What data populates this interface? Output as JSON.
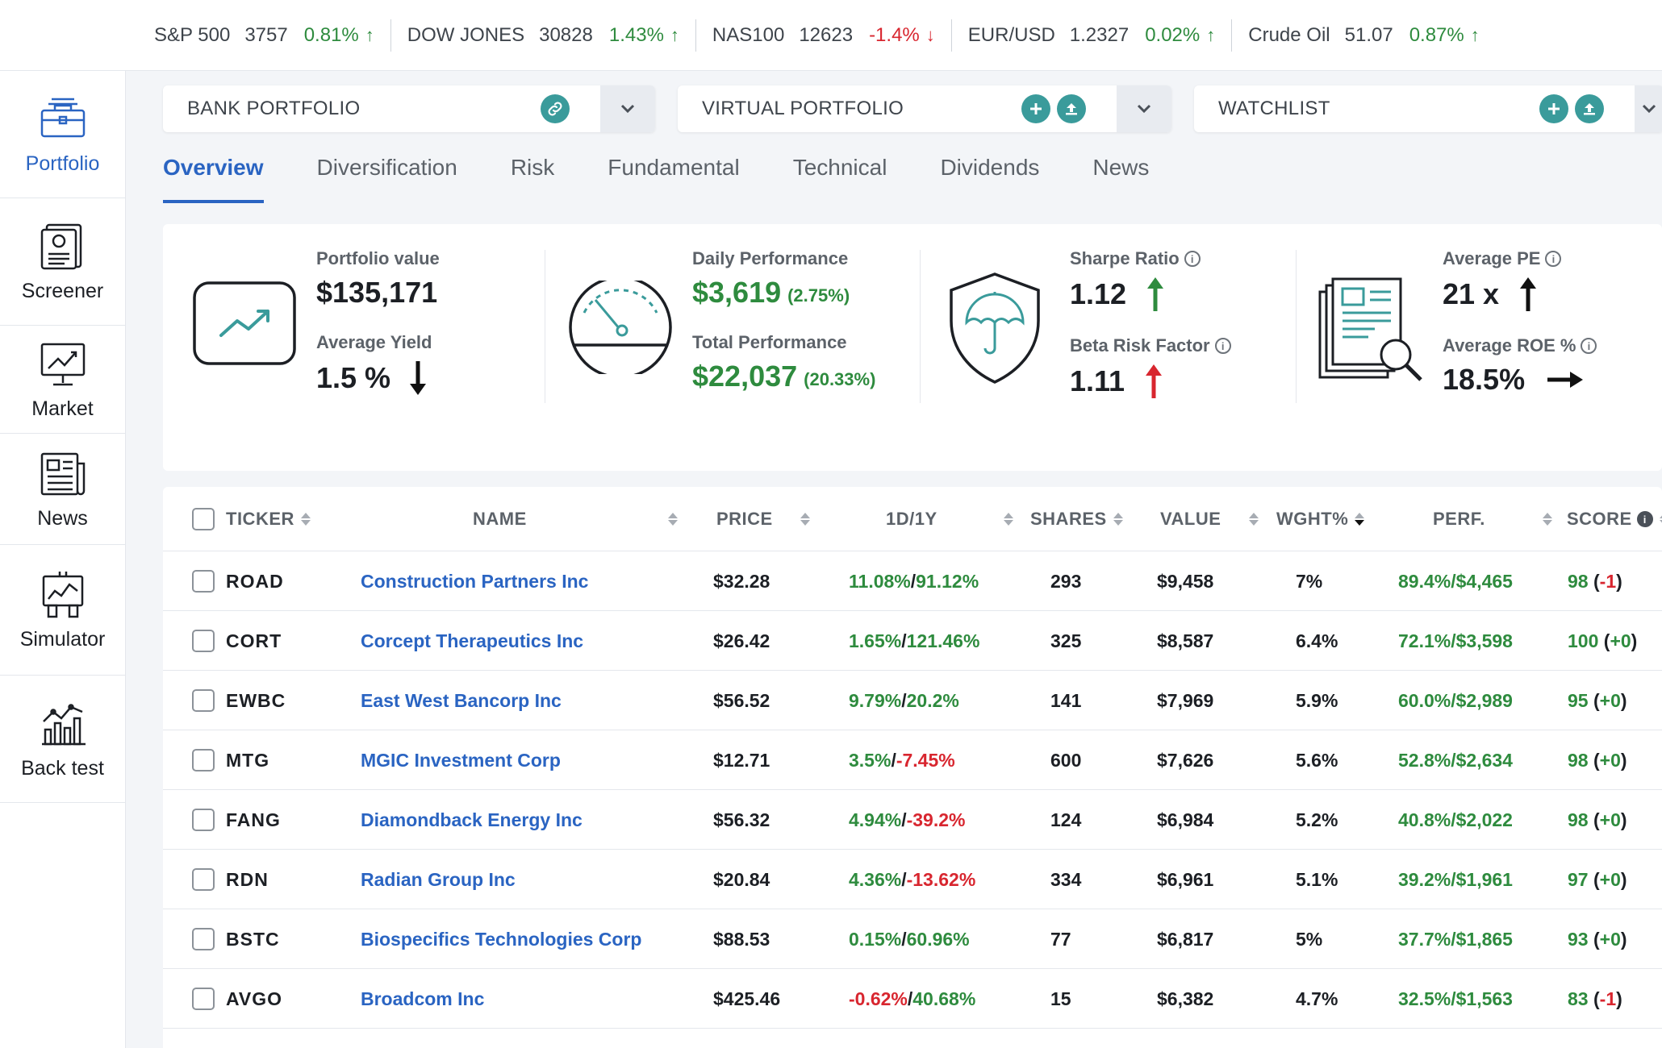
{
  "ticker_bar": [
    {
      "name": "S&P 500",
      "value": "3757",
      "change": "0.81%",
      "dir": "up"
    },
    {
      "name": "DOW JONES",
      "value": "30828",
      "change": "1.43%",
      "dir": "up"
    },
    {
      "name": "NAS100",
      "value": "12623",
      "change": "-1.4%",
      "dir": "down"
    },
    {
      "name": "EUR/USD",
      "value": "1.2327",
      "change": "0.02%",
      "dir": "up"
    },
    {
      "name": "Crude Oil",
      "value": "51.07",
      "change": "0.87%",
      "dir": "up"
    }
  ],
  "sidebar": {
    "items": [
      {
        "label": "Portfolio",
        "icon": "portfolio-icon",
        "active": true
      },
      {
        "label": "Screener",
        "icon": "screener-icon"
      },
      {
        "label": "Market",
        "icon": "market-icon"
      },
      {
        "label": "News",
        "icon": "news-icon"
      },
      {
        "label": "Simulator",
        "icon": "simulator-icon"
      },
      {
        "label": "Back test",
        "icon": "backtest-icon"
      }
    ]
  },
  "selectors": {
    "bank": {
      "label": "BANK PORTFOLIO"
    },
    "virtual": {
      "label": "VIRTUAL PORTFOLIO"
    },
    "watchlist": {
      "label": "WATCHLIST"
    }
  },
  "tabs": [
    "Overview",
    "Diversification",
    "Risk",
    "Fundamental",
    "Technical",
    "Dividends",
    "News"
  ],
  "summary": {
    "portfolio_value_label": "Portfolio value",
    "portfolio_value": "$135,171",
    "avg_yield_label": "Average Yield",
    "avg_yield": "1.5 %",
    "daily_perf_label": "Daily Performance",
    "daily_perf": "$3,619",
    "daily_perf_pct": "(2.75%)",
    "total_perf_label": "Total Performance",
    "total_perf": "$22,037",
    "total_perf_pct": "(20.33%)",
    "sharpe_label": "Sharpe Ratio",
    "sharpe": "1.12",
    "beta_label": "Beta Risk Factor",
    "beta": "1.11",
    "avg_pe_label": "Average PE",
    "avg_pe": "21 x",
    "avg_roe_label": "Average ROE %",
    "avg_roe": "18.5%",
    "info_glyph": "i"
  },
  "table": {
    "headers": {
      "ticker": "TICKER",
      "name": "NAME",
      "price": "PRICE",
      "d1y": "1D/1Y",
      "shares": "SHARES",
      "value": "VALUE",
      "wght": "WGHT%",
      "perf": "PERF.",
      "score": "SCORE"
    },
    "rows": [
      {
        "ticker": "ROAD",
        "name": "Construction Partners Inc",
        "price": "$32.28",
        "d1": "11.08%",
        "y1": "91.12%",
        "d1neg": false,
        "y1neg": false,
        "shares": "293",
        "value": "$9,458",
        "wght": "7%",
        "perf": "89.4%/$4,465",
        "score": "98",
        "delta": "-1"
      },
      {
        "ticker": "CORT",
        "name": "Corcept Therapeutics Inc",
        "price": "$26.42",
        "d1": "1.65%",
        "y1": "121.46%",
        "d1neg": false,
        "y1neg": false,
        "shares": "325",
        "value": "$8,587",
        "wght": "6.4%",
        "perf": "72.1%/$3,598",
        "score": "100",
        "delta": "+0"
      },
      {
        "ticker": "EWBC",
        "name": "East West Bancorp Inc",
        "price": "$56.52",
        "d1": "9.79%",
        "y1": "20.2%",
        "d1neg": false,
        "y1neg": false,
        "shares": "141",
        "value": "$7,969",
        "wght": "5.9%",
        "perf": "60.0%/$2,989",
        "score": "95",
        "delta": "+0"
      },
      {
        "ticker": "MTG",
        "name": "MGIC Investment Corp",
        "price": "$12.71",
        "d1": "3.5%",
        "y1": "-7.45%",
        "d1neg": false,
        "y1neg": true,
        "shares": "600",
        "value": "$7,626",
        "wght": "5.6%",
        "perf": "52.8%/$2,634",
        "score": "98",
        "delta": "+0"
      },
      {
        "ticker": "FANG",
        "name": "Diamondback Energy Inc",
        "price": "$56.32",
        "d1": "4.94%",
        "y1": "-39.2%",
        "d1neg": false,
        "y1neg": true,
        "shares": "124",
        "value": "$6,984",
        "wght": "5.2%",
        "perf": "40.8%/$2,022",
        "score": "98",
        "delta": "+0"
      },
      {
        "ticker": "RDN",
        "name": "Radian Group Inc",
        "price": "$20.84",
        "d1": "4.36%",
        "y1": "-13.62%",
        "d1neg": false,
        "y1neg": true,
        "shares": "334",
        "value": "$6,961",
        "wght": "5.1%",
        "perf": "39.2%/$1,961",
        "score": "97",
        "delta": "+0"
      },
      {
        "ticker": "BSTC",
        "name": "Biospecifics Technologies Corp",
        "price": "$88.53",
        "d1": "0.15%",
        "y1": "60.96%",
        "d1neg": false,
        "y1neg": false,
        "shares": "77",
        "value": "$6,817",
        "wght": "5%",
        "perf": "37.7%/$1,865",
        "score": "93",
        "delta": "+0"
      },
      {
        "ticker": "AVGO",
        "name": "Broadcom Inc",
        "price": "$425.46",
        "d1": "-0.62%",
        "y1": "40.68%",
        "d1neg": true,
        "y1neg": false,
        "shares": "15",
        "value": "$6,382",
        "wght": "4.7%",
        "perf": "32.5%/$1,563",
        "score": "83",
        "delta": "-1"
      }
    ]
  },
  "colors": {
    "accent": "#2a64c2",
    "positive": "#2e8b3e",
    "negative": "#d8262f",
    "teal": "#3a9b9b"
  }
}
